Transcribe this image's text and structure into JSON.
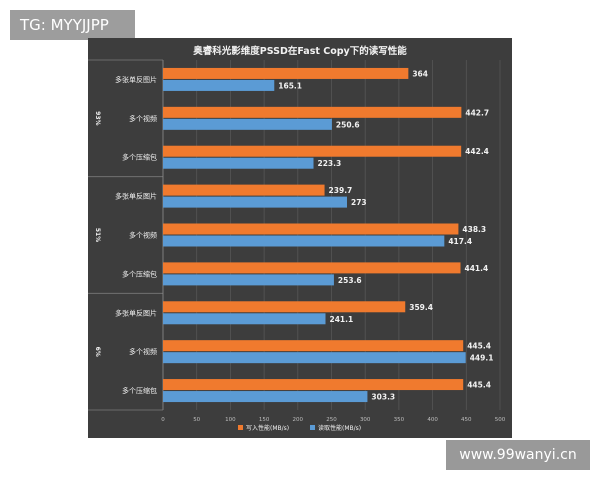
{
  "watermark_tl": "TG: MYYJJPP",
  "watermark_br": "www.99wanyi.cn",
  "colors": {
    "panel": "#3d3d3d",
    "write": "#f07a2e",
    "read": "#5b9bd5",
    "grid": "#565656",
    "text": "#f2f2f2"
  },
  "chart_data": {
    "type": "bar",
    "orientation": "horizontal",
    "title": "奥睿科光影维度PSSD在Fast Copy下的读写性能",
    "groups": [
      {
        "label": "93%",
        "categories": [
          "多张单反图片",
          "多个视频",
          "多个压缩包"
        ]
      },
      {
        "label": "51%",
        "categories": [
          "多张单反图片",
          "多个视频",
          "多个压缩包"
        ]
      },
      {
        "label": "6%",
        "categories": [
          "多张单反图片",
          "多个视频",
          "多个压缩包"
        ]
      }
    ],
    "series": [
      {
        "name": "写入性能(MB/s)",
        "values": [
          364,
          442.7,
          442.4,
          239.7,
          438.3,
          441.4,
          359.4,
          445.4,
          445.4
        ]
      },
      {
        "name": "读取性能(MB/s)",
        "values": [
          165.1,
          250.6,
          223.3,
          273,
          417.4,
          253.6,
          241.1,
          449.1,
          303.3
        ]
      }
    ],
    "xlim": [
      0,
      500
    ],
    "xticks": [
      "0",
      "50",
      "100",
      "150",
      "200",
      "250",
      "300",
      "350",
      "400",
      "450",
      "500"
    ],
    "grid": true,
    "legend_position": "bottom"
  }
}
